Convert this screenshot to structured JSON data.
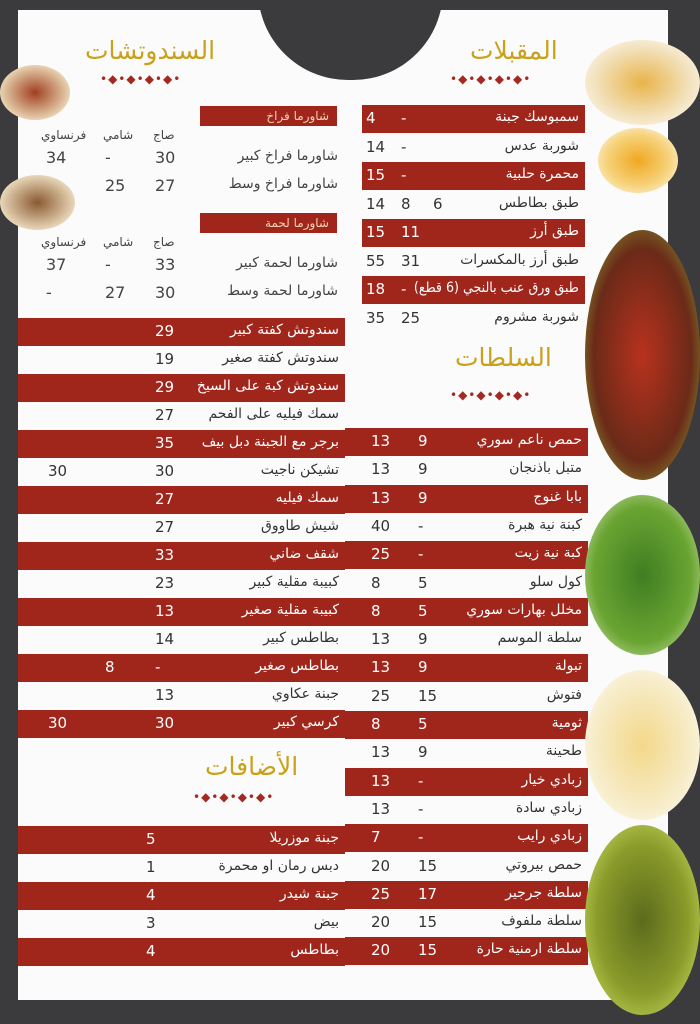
{
  "appetizers": {
    "title": "المقبلات",
    "items": [
      {
        "name": "سمبوسك جبنة",
        "p": [
          null,
          "-",
          "4"
        ]
      },
      {
        "name": "شوربة عدس",
        "p": [
          null,
          "-",
          "14"
        ]
      },
      {
        "name": "محمرة حلبية",
        "p": [
          null,
          "-",
          "15"
        ]
      },
      {
        "name": "طبق بطاطس",
        "p": [
          "6",
          "8",
          "14"
        ]
      },
      {
        "name": "طبق أرز",
        "p": [
          null,
          "11",
          "15"
        ]
      },
      {
        "name": "طبق أرز بالمكسرات",
        "p": [
          null,
          "31",
          "55"
        ]
      },
      {
        "name": "طبق ورق عنب بالنجي (6 قطع)",
        "p": [
          null,
          "-",
          "18"
        ]
      },
      {
        "name": "شوربة مشروم",
        "p": [
          null,
          "25",
          "35"
        ]
      }
    ]
  },
  "salads": {
    "title": "السلطات",
    "items": [
      {
        "name": "حمص ناعم سوري",
        "p": [
          "9",
          "13"
        ]
      },
      {
        "name": "متبل باذنجان",
        "p": [
          "9",
          "13"
        ]
      },
      {
        "name": "بابا غنوج",
        "p": [
          "9",
          "13"
        ]
      },
      {
        "name": "كبنة نية هبرة",
        "p": [
          "-",
          "40"
        ]
      },
      {
        "name": "كبة نية زيت",
        "p": [
          "-",
          "25"
        ]
      },
      {
        "name": "كول سلو",
        "p": [
          "5",
          "8"
        ]
      },
      {
        "name": "مخلل بهارات سوري",
        "p": [
          "5",
          "8"
        ]
      },
      {
        "name": "سلطة الموسم",
        "p": [
          "9",
          "13"
        ]
      },
      {
        "name": "تبولة",
        "p": [
          "9",
          "13"
        ]
      },
      {
        "name": "فتوش",
        "p": [
          "15",
          "25"
        ]
      },
      {
        "name": "ثومية",
        "p": [
          "5",
          "8"
        ]
      },
      {
        "name": "طحينة",
        "p": [
          "9",
          "13"
        ]
      },
      {
        "name": "زبادي خيار",
        "p": [
          "-",
          "13"
        ]
      },
      {
        "name": "زبادي سادة",
        "p": [
          "-",
          "13"
        ]
      },
      {
        "name": "زبادي رايب",
        "p": [
          "-",
          "7"
        ]
      },
      {
        "name": "حمص بيروتي",
        "p": [
          "15",
          "20"
        ]
      },
      {
        "name": "سلطة جرجير",
        "p": [
          "17",
          "25"
        ]
      },
      {
        "name": "سلطة ملفوف",
        "p": [
          "15",
          "20"
        ]
      },
      {
        "name": "سلطة ارمنية حارة",
        "p": [
          "15",
          "20"
        ]
      }
    ]
  },
  "sandwiches": {
    "title": "السندوتشات",
    "shawarma": [
      {
        "label": "شاورما فراخ",
        "headers": [
          "صاج",
          "شامي",
          "فرنساوي"
        ],
        "items": [
          {
            "name": "شاورما فراخ كبير",
            "p": [
              "30",
              "-",
              "34"
            ]
          },
          {
            "name": "شاورما فراخ وسط",
            "p": [
              "27",
              "25",
              "-"
            ]
          }
        ]
      },
      {
        "label": "شاورما لحمة",
        "headers": [
          "صاج",
          "شامي",
          "فرنساوي"
        ],
        "items": [
          {
            "name": "شاورما لحمة كبير",
            "p": [
              "33",
              "-",
              "37"
            ]
          },
          {
            "name": "شاورما لحمة وسط",
            "p": [
              "30",
              "27",
              "-"
            ]
          }
        ]
      }
    ],
    "items": [
      {
        "name": "سندوتش كفتة كبير",
        "p": [
          "29",
          null,
          null
        ]
      },
      {
        "name": "سندوتش كفتة صغير",
        "p": [
          "19",
          null,
          null
        ]
      },
      {
        "name": "سندوتش كبة على السيخ",
        "p": [
          "29",
          null,
          null
        ]
      },
      {
        "name": "سمك فيليه على الفحم",
        "p": [
          "27",
          null,
          null
        ]
      },
      {
        "name": "برجر مع الجبنة دبل بيف",
        "p": [
          "35",
          null,
          null
        ]
      },
      {
        "name": "تشيكن ناجيت",
        "p": [
          "30",
          null,
          "30"
        ]
      },
      {
        "name": "سمك فيليه",
        "p": [
          "27",
          null,
          null
        ]
      },
      {
        "name": "شيش طاووق",
        "p": [
          "27",
          null,
          null
        ]
      },
      {
        "name": "شقف ضاني",
        "p": [
          "33",
          null,
          null
        ]
      },
      {
        "name": "كبيبة مقلية كبير",
        "p": [
          "23",
          null,
          null
        ]
      },
      {
        "name": "كبيبة مقلية صغير",
        "p": [
          "13",
          null,
          null
        ]
      },
      {
        "name": "بطاطس كبير",
        "p": [
          "14",
          null,
          null
        ]
      },
      {
        "name": "بطاطس صغير",
        "p": [
          "-",
          "8",
          null
        ]
      },
      {
        "name": "جبنة عكاوي",
        "p": [
          "13",
          null,
          null
        ]
      },
      {
        "name": "كرسي كبير",
        "p": [
          "30",
          null,
          "30"
        ]
      }
    ]
  },
  "additions": {
    "title": "الأضافات",
    "items": [
      {
        "name": "جبنة موزريلا",
        "p": "5"
      },
      {
        "name": "دبس رمان او محمرة",
        "p": "1"
      },
      {
        "name": "جبنة شيدر",
        "p": "4"
      },
      {
        "name": "بيض",
        "p": "3"
      },
      {
        "name": "بطاطس",
        "p": "4"
      }
    ]
  },
  "colors": {
    "accent": "#a0261c",
    "title": "#c9a11a",
    "background": "#3b3b3d"
  }
}
